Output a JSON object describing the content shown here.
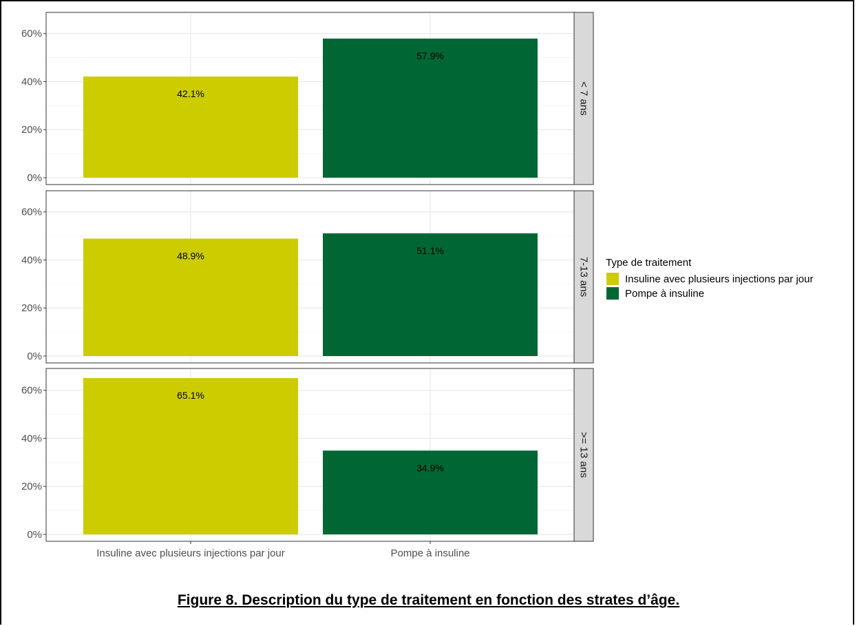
{
  "chart_data": {
    "type": "bar",
    "categories": [
      "Insuline avec plusieurs injections par jour",
      "Pompe à insuline"
    ],
    "facets": [
      {
        "label": "< 7 ans",
        "values": [
          42.1,
          57.9
        ],
        "value_labels": [
          "42.1%",
          "57.9%"
        ]
      },
      {
        "label": "7-13 ans",
        "values": [
          48.9,
          51.1
        ],
        "value_labels": [
          "48.9%",
          "51.1%"
        ]
      },
      {
        "label": ">= 13 ans",
        "values": [
          65.1,
          34.9
        ],
        "value_labels": [
          "65.1%",
          "34.9%"
        ]
      }
    ],
    "y_ticks": [
      "0%",
      "20%",
      "40%",
      "60%"
    ],
    "y_tick_values": [
      0,
      20,
      40,
      60
    ],
    "ylim": [
      0,
      68
    ],
    "grid": true,
    "legend": {
      "title": "Type de traitement",
      "placement": "right",
      "items": [
        {
          "label": "Insuline avec plusieurs injections par jour",
          "color": "#cccc00"
        },
        {
          "label": "Pompe à insuline",
          "color": "#006633"
        }
      ]
    }
  },
  "caption": "Figure 8. Description du type de traitement en fonction des strates d’âge."
}
